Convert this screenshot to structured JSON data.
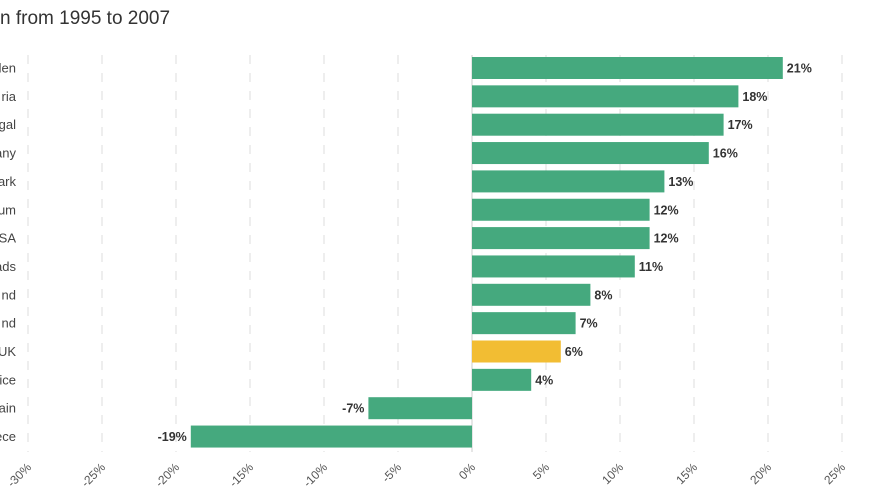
{
  "chart_data": {
    "type": "bar",
    "orientation": "horizontal",
    "title": "n from 1995 to 2007",
    "categories": [
      "den",
      "ria",
      "gal",
      "any",
      "ark",
      "um",
      "SA",
      "ads",
      "nd",
      "nd",
      "UK",
      "ice",
      "ain",
      "ece"
    ],
    "values": [
      21,
      18,
      17,
      16,
      13,
      12,
      12,
      11,
      8,
      7,
      6,
      4,
      -7,
      -19
    ],
    "value_labels": [
      "21%",
      "18%",
      "17%",
      "16%",
      "13%",
      "12%",
      "12%",
      "11%",
      "8%",
      "7%",
      "6%",
      "4%",
      "-7%",
      "-19%"
    ],
    "highlight_index": 10,
    "xlim": [
      -30,
      25
    ],
    "ticks": [
      -30,
      -25,
      -20,
      -15,
      -10,
      -5,
      0,
      5,
      10,
      15,
      20,
      25
    ],
    "tick_labels": [
      "-30%",
      "-25%",
      "-20%",
      "-15%",
      "-10%",
      "-5%",
      "0%",
      "5%",
      "10%",
      "15%",
      "20%",
      "25%"
    ],
    "grid": true,
    "colors": {
      "bar": "#45a97e",
      "highlight": "#f2bd33"
    }
  }
}
